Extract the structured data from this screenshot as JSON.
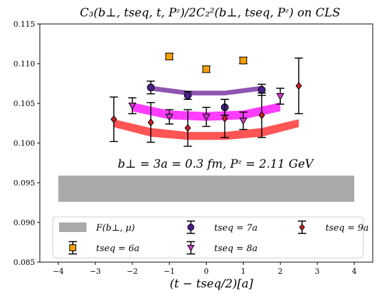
{
  "chart_data": {
    "type": "scatter",
    "title": "C₃(b⊥, tseq, t, Pᶻ)/2C₂²(b⊥, tseq, Pᶻ) on CLS",
    "xlabel": "(t − tseq/2)[a]",
    "ylabel": "",
    "xlim": [
      -4.5,
      4.5
    ],
    "ylim": [
      0.085,
      0.115
    ],
    "xticks": [
      "−4",
      "−3",
      "−2",
      "−1",
      "0",
      "1",
      "2",
      "3",
      "4"
    ],
    "yticks": [
      "0.085",
      "0.090",
      "0.095",
      "0.100",
      "0.105",
      "0.110",
      "0.115"
    ],
    "annotation": "b⊥ = 3a = 0.3 fm,  Pᶻ = 2.11 GeV",
    "band": {
      "name": "F(b⊥, μ)",
      "x": [
        -4,
        4
      ],
      "y": [
        0.0926,
        0.0959
      ],
      "color": "#aaaaaa"
    },
    "series": [
      {
        "name": "tseq = 6a",
        "marker": "square",
        "color": "#f5a00a",
        "x": [
          -1,
          0,
          1
        ],
        "y": [
          0.1109,
          0.1093,
          0.1104
        ],
        "err": [
          0.0004,
          0.0004,
          0.0004
        ]
      },
      {
        "name": "tseq = 7a",
        "marker": "circle",
        "color": "#4b1e8c",
        "bandColor": "#8d54b0",
        "x": [
          -1.5,
          -0.5,
          0.5,
          1.5
        ],
        "y": [
          0.107,
          0.106,
          0.1045,
          0.1067
        ],
        "err": [
          0.0008,
          0.0005,
          0.001,
          0.0007
        ],
        "fit_x": [
          -1.5,
          -0.5,
          0.5,
          1.5
        ],
        "fit_lo": [
          0.1066,
          0.106,
          0.106,
          0.1066
        ],
        "fit_hi": [
          0.1072,
          0.1066,
          0.1066,
          0.1072
        ]
      },
      {
        "name": "tseq = 8a",
        "marker": "triangle-down",
        "color": "#c838c8",
        "bandColor": "#ff3cff",
        "x": [
          -2,
          -1,
          0,
          1,
          2
        ],
        "y": [
          0.1047,
          0.1033,
          0.1033,
          0.1028,
          0.1059
        ],
        "err": [
          0.001,
          0.0009,
          0.0012,
          0.0011,
          0.001
        ],
        "fit_x": [
          -2,
          -1,
          0,
          1,
          2
        ],
        "fit_lo": [
          0.104,
          0.103,
          0.1028,
          0.103,
          0.104
        ],
        "fit_hi": [
          0.1051,
          0.1041,
          0.1039,
          0.1041,
          0.1051
        ]
      },
      {
        "name": "tseq = 9a",
        "marker": "diamond",
        "color": "#cc2020",
        "bandColor": "#ff5555",
        "x": [
          -2.5,
          -1.5,
          -0.5,
          0.5,
          1.5,
          2.5
        ],
        "y": [
          0.103,
          0.1026,
          0.1019,
          0.1031,
          0.1035,
          0.1072
        ],
        "err": [
          0.0028,
          0.0025,
          0.0023,
          0.0024,
          0.0028,
          0.0035
        ],
        "fit_x": [
          -2.5,
          -1.5,
          -0.5,
          0.5,
          1.5,
          2.5
        ],
        "fit_lo": [
          0.102,
          0.1008,
          0.1004,
          0.1004,
          0.1008,
          0.102
        ],
        "fit_hi": [
          0.103,
          0.1019,
          0.1014,
          0.1014,
          0.1019,
          0.103
        ]
      }
    ],
    "legend": {
      "placement": "lower center",
      "ncol": 3
    },
    "grid": false
  }
}
